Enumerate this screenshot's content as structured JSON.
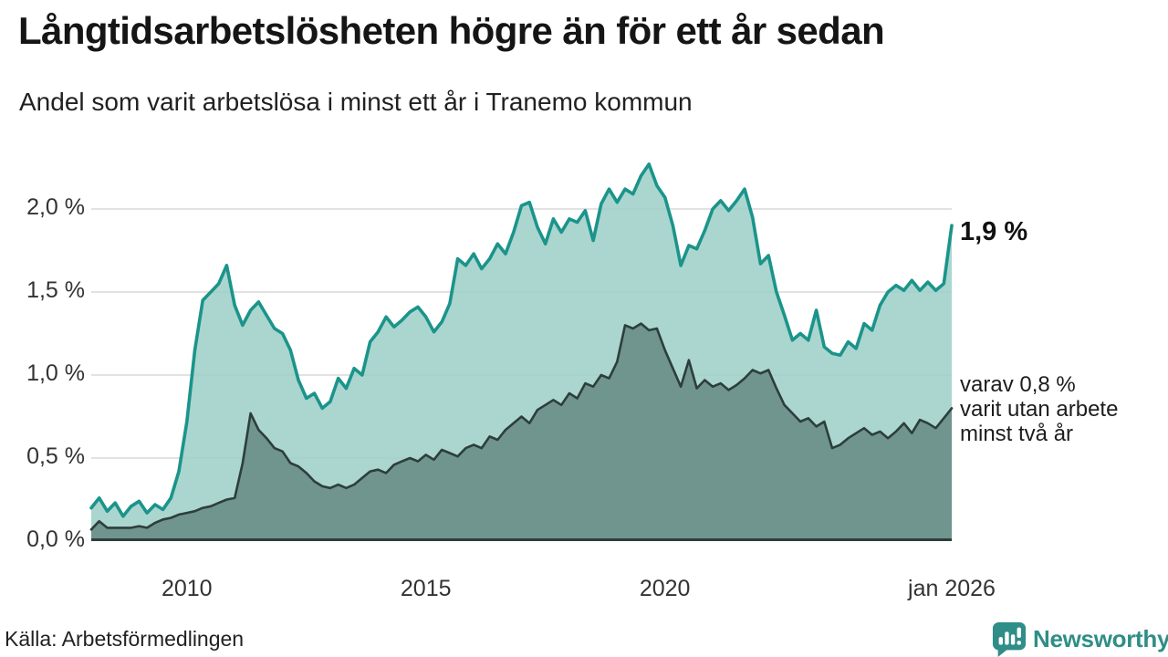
{
  "header": {
    "title": "Långtidsarbetslösheten högre än för ett år sedan",
    "subtitle": "Andel som varit arbetslösa i minst ett år i Tranemo kommun"
  },
  "chart_data": {
    "type": "area",
    "title": "Långtidsarbetslösheten högre än för ett år sedan",
    "subtitle": "Andel som varit arbetslösa i minst ett år i Tranemo kommun",
    "unit": "%",
    "x_start": 2008.0,
    "x_end": 2026.0,
    "x_interval_months": 2,
    "ylim": [
      0,
      2.38
    ],
    "grid": true,
    "legend": "none",
    "x_ticks": [
      {
        "year": 2010,
        "label": "2010"
      },
      {
        "year": 2015,
        "label": "2015"
      },
      {
        "year": 2020,
        "label": "2020"
      },
      {
        "year": 2026,
        "label": "jan 2026"
      }
    ],
    "y_ticks": [
      {
        "value": 0.0,
        "label": "0,0 %"
      },
      {
        "value": 0.5,
        "label": "0,5 %"
      },
      {
        "value": 1.0,
        "label": "1,0 %"
      },
      {
        "value": 1.5,
        "label": "1,5 %"
      },
      {
        "value": 2.0,
        "label": "2,0 %"
      }
    ],
    "series": [
      {
        "name": "Andel arbetslösa i minst ett år",
        "line_color": "#1b948b",
        "fill_color": "#9bcfc7",
        "end_value": 1.9,
        "values": [
          0.2,
          0.26,
          0.18,
          0.23,
          0.15,
          0.21,
          0.24,
          0.17,
          0.22,
          0.19,
          0.26,
          0.42,
          0.72,
          1.15,
          1.45,
          1.5,
          1.55,
          1.66,
          1.42,
          1.3,
          1.39,
          1.44,
          1.36,
          1.28,
          1.25,
          1.15,
          0.97,
          0.86,
          0.89,
          0.8,
          0.84,
          0.98,
          0.92,
          1.04,
          1.0,
          1.2,
          1.26,
          1.35,
          1.29,
          1.33,
          1.38,
          1.41,
          1.35,
          1.26,
          1.32,
          1.43,
          1.7,
          1.66,
          1.73,
          1.64,
          1.7,
          1.79,
          1.73,
          1.86,
          2.02,
          2.04,
          1.89,
          1.79,
          1.94,
          1.86,
          1.94,
          1.92,
          1.99,
          1.81,
          2.03,
          2.12,
          2.04,
          2.12,
          2.09,
          2.2,
          2.27,
          2.14,
          2.07,
          1.9,
          1.66,
          1.78,
          1.76,
          1.87,
          2.0,
          2.05,
          1.99,
          2.05,
          2.12,
          1.95,
          1.67,
          1.72,
          1.5,
          1.36,
          1.21,
          1.25,
          1.21,
          1.39,
          1.17,
          1.13,
          1.12,
          1.2,
          1.16,
          1.31,
          1.27,
          1.42,
          1.5,
          1.54,
          1.51,
          1.57,
          1.51,
          1.56,
          1.51,
          1.55,
          1.9
        ]
      },
      {
        "name": "varav utan arbete minst två år",
        "line_color": "#2d3e3b",
        "fill_color": "#668c85",
        "end_value": 0.8,
        "values": [
          0.07,
          0.12,
          0.08,
          0.08,
          0.08,
          0.08,
          0.09,
          0.08,
          0.11,
          0.13,
          0.14,
          0.16,
          0.17,
          0.18,
          0.2,
          0.21,
          0.23,
          0.25,
          0.26,
          0.47,
          0.77,
          0.67,
          0.62,
          0.56,
          0.54,
          0.47,
          0.45,
          0.41,
          0.36,
          0.33,
          0.32,
          0.34,
          0.32,
          0.34,
          0.38,
          0.42,
          0.43,
          0.41,
          0.46,
          0.48,
          0.5,
          0.48,
          0.52,
          0.49,
          0.55,
          0.53,
          0.51,
          0.56,
          0.58,
          0.56,
          0.63,
          0.61,
          0.67,
          0.71,
          0.75,
          0.71,
          0.79,
          0.82,
          0.85,
          0.82,
          0.89,
          0.86,
          0.95,
          0.93,
          1.0,
          0.98,
          1.08,
          1.3,
          1.28,
          1.31,
          1.27,
          1.28,
          1.15,
          1.04,
          0.93,
          1.09,
          0.92,
          0.97,
          0.93,
          0.95,
          0.91,
          0.94,
          0.98,
          1.03,
          1.01,
          1.03,
          0.92,
          0.82,
          0.77,
          0.72,
          0.74,
          0.69,
          0.72,
          0.56,
          0.58,
          0.62,
          0.65,
          0.68,
          0.64,
          0.66,
          0.62,
          0.66,
          0.71,
          0.65,
          0.73,
          0.71,
          0.68,
          0.74,
          0.8
        ]
      }
    ],
    "annotations": {
      "primary": "1,9 %",
      "secondary_lines": [
        "varav 0,8 %",
        "varit utan arbete",
        "minst två år"
      ]
    }
  },
  "footer": {
    "source": "Källa: Arbetsförmedlingen",
    "brand": "Newsworthy"
  },
  "colors": {
    "accent_teal": "#1b948b",
    "light_fill": "#a9d6cf",
    "dark_fill": "#6f968f",
    "dark_stroke": "#2d3e3b",
    "grid": "#d8d8d8",
    "brand_teal": "#2f8e87",
    "text": "#1a1a1a"
  }
}
